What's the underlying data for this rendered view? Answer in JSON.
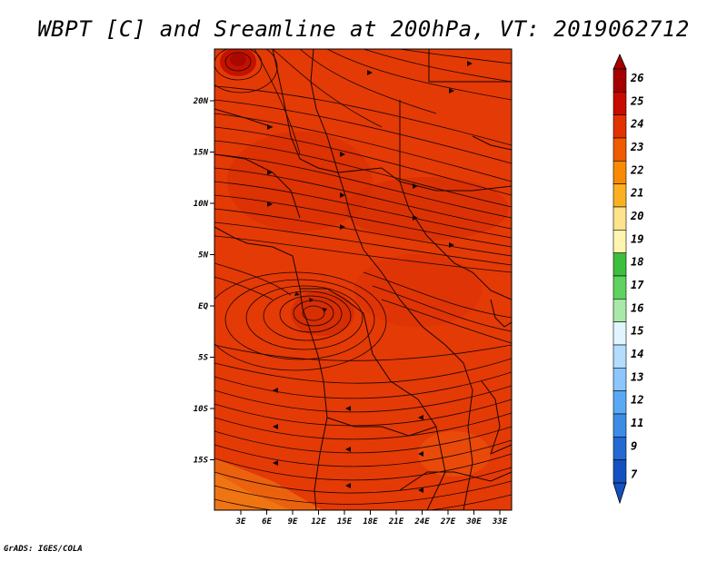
{
  "title": "WBPT [C] and Sreamline at 200hPa, VT: 2019062712",
  "footer": "GrADS: IGES/COLA",
  "map": {
    "lon_labels": [
      "3E",
      "6E",
      "9E",
      "12E",
      "15E",
      "18E",
      "21E",
      "24E",
      "27E",
      "30E",
      "33E"
    ],
    "lat_labels": [
      "20N",
      "15N",
      "10N",
      "5N",
      "EQ",
      "5S",
      "10S",
      "15S"
    ],
    "field_color": "#e43a06"
  },
  "colorbar": {
    "labels": [
      "26",
      "25",
      "24",
      "23",
      "22",
      "21",
      "20",
      "19",
      "18",
      "17",
      "16",
      "15",
      "14",
      "13",
      "12",
      "11",
      "9",
      "7"
    ],
    "colors": [
      "#a50000",
      "#c80a00",
      "#e23200",
      "#f05a00",
      "#f98a00",
      "#fbb020",
      "#fde38c",
      "#fff4b0",
      "#3cbf3c",
      "#5fd35f",
      "#a8e8a8",
      "#e0f5ff",
      "#b4dcff",
      "#8cc6ff",
      "#5aa9f5",
      "#3c8ce6",
      "#2469d2",
      "#1450bf"
    ]
  }
}
